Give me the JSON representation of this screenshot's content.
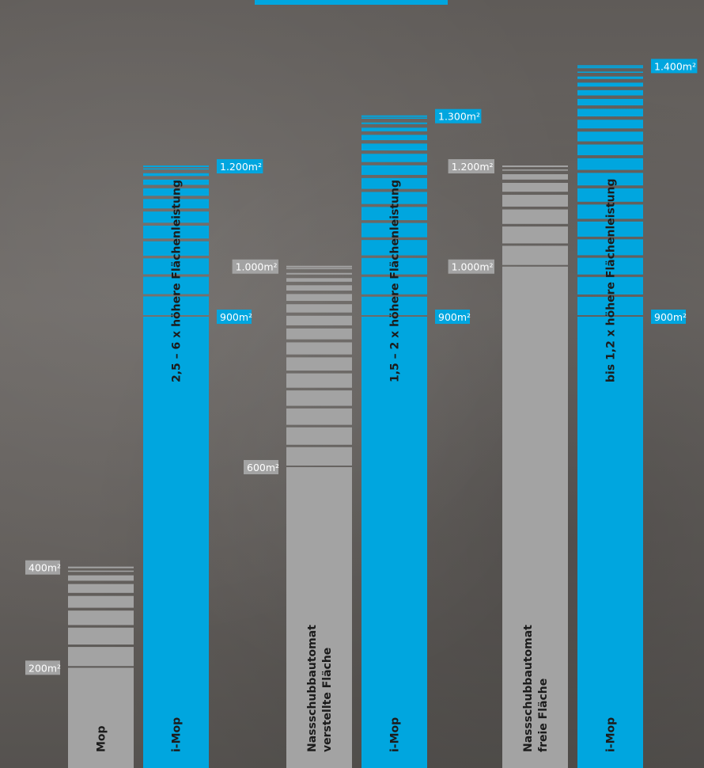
{
  "chart_data": {
    "type": "bar",
    "ylim": [
      0,
      1400
    ],
    "unit": "m²",
    "colors": {
      "blue": "#00a6df",
      "gray": "#a3a3a3",
      "label_gray": "#a3a3a3"
    },
    "bars": [
      {
        "category": "Mop",
        "category_lines": [
          "Mop"
        ],
        "color": "gray",
        "solid_value": 200,
        "max_value": 400,
        "range_text": "",
        "solid_label": "200m²",
        "max_label": "400m²"
      },
      {
        "category": "i-Mop",
        "category_lines": [
          "i-Mop"
        ],
        "color": "blue",
        "solid_value": 900,
        "max_value": 1200,
        "range_text": "2,5 – 6 x höhere Flächenleistung",
        "solid_label": "900m²",
        "max_label": "1.200m²"
      },
      {
        "category": "Nassschubbautomat verstellte Fläche",
        "category_lines": [
          "Nassschubbautomat",
          "verstellte Fläche"
        ],
        "color": "gray",
        "solid_value": 600,
        "max_value": 1000,
        "range_text": "",
        "solid_label": "600m²",
        "max_label": "1.000m²"
      },
      {
        "category": "i-Mop",
        "category_lines": [
          "i-Mop"
        ],
        "color": "blue",
        "solid_value": 900,
        "max_value": 1300,
        "range_text": "1,5 – 2 x höhere Flächenleistung",
        "solid_label": "900m²",
        "max_label": "1.300m²"
      },
      {
        "category": "Nassschubbautomat freie Fläche",
        "category_lines": [
          "Nassschubbautomat",
          "freie Fläche"
        ],
        "color": "gray",
        "solid_value": 1000,
        "max_value": 1200,
        "range_text": "",
        "solid_label": "1.000m²",
        "max_label": "1.200m²"
      },
      {
        "category": "i-Mop",
        "category_lines": [
          "i-Mop"
        ],
        "color": "blue",
        "solid_value": 900,
        "max_value": 1400,
        "range_text": "bis 1,2 x höhere Flächenleistung",
        "solid_label": "900m²",
        "max_label": "1.400m²"
      }
    ]
  }
}
